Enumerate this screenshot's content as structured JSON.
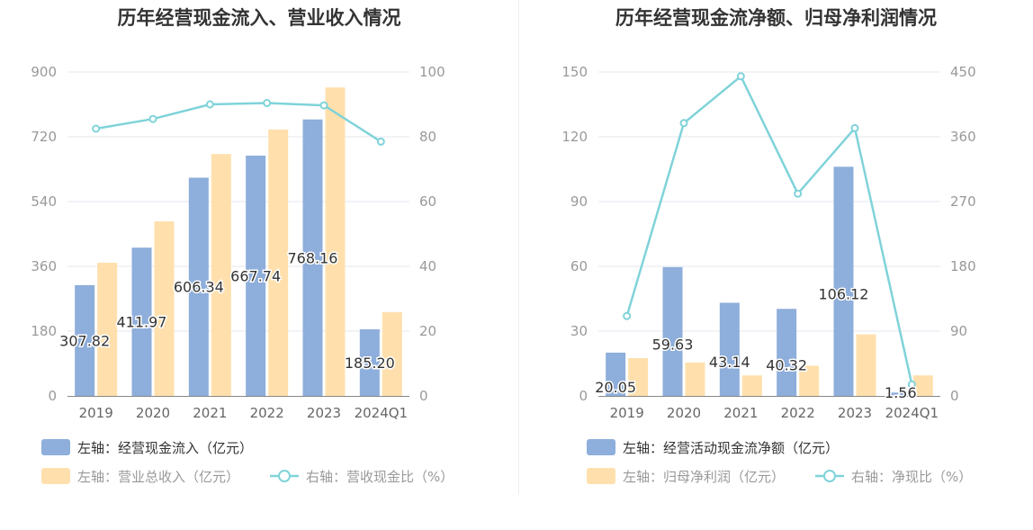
{
  "charts": [
    {
      "title": "历年经营现金流入、营业收入情况",
      "categories": [
        "2019",
        "2020",
        "2021",
        "2022",
        "2023",
        "2024Q1"
      ],
      "left_ticks": [
        "0",
        "180",
        "360",
        "540",
        "720",
        "900"
      ],
      "right_ticks": [
        "0",
        "20",
        "40",
        "60",
        "80",
        "100"
      ],
      "legend": [
        {
          "label": "左轴：经营现金流入（亿元）",
          "kind": "bar",
          "color": "#8eaedb",
          "text_color": "#333333"
        },
        {
          "label": "左轴：营业总收入（亿元）",
          "kind": "bar",
          "color": "#ffe0ad",
          "text_color": "#999999"
        },
        {
          "label": "右轴：营收现金比（%）",
          "kind": "line",
          "color": "#7fd3d9",
          "text_color": "#999999"
        }
      ]
    },
    {
      "title": "历年经营现金流净额、归母净利润情况",
      "categories": [
        "2019",
        "2020",
        "2021",
        "2022",
        "2023",
        "2024Q1"
      ],
      "left_ticks": [
        "0",
        "30",
        "60",
        "90",
        "120",
        "150"
      ],
      "right_ticks": [
        "0",
        "90",
        "180",
        "270",
        "360",
        "450"
      ],
      "legend": [
        {
          "label": "左轴：经营活动现金流净额（亿元）",
          "kind": "bar",
          "color": "#8eaedb",
          "text_color": "#333333"
        },
        {
          "label": "左轴：归母净利润（亿元）",
          "kind": "bar",
          "color": "#ffe0ad",
          "text_color": "#999999"
        },
        {
          "label": "右轴：净现比（%）",
          "kind": "line",
          "color": "#7fd3d9",
          "text_color": "#999999"
        }
      ]
    }
  ],
  "chart_data": [
    {
      "type": "bar",
      "title": "历年经营现金流入、营业收入情况",
      "categories": [
        "2019",
        "2020",
        "2021",
        "2022",
        "2023",
        "2024Q1"
      ],
      "ylim_left": [
        0,
        900
      ],
      "ylim_right": [
        0,
        100
      ],
      "grid": true,
      "legend_position": "bottom-left",
      "series": [
        {
          "name": "左轴：经营现金流入（亿元）",
          "axis": "left",
          "type": "bar",
          "color": "#8eaedb",
          "values": [
            307.82,
            411.97,
            606.34,
            667.74,
            768.16,
            185.2
          ],
          "labels": [
            "307.82",
            "411.97",
            "606.34",
            "667.74",
            "768.16",
            "185.20"
          ]
        },
        {
          "name": "左轴：营业总收入（亿元）",
          "axis": "left",
          "type": "bar",
          "color": "#ffe0ad",
          "values": [
            370,
            485,
            672,
            740,
            857,
            233
          ]
        },
        {
          "name": "右轴：营收现金比（%）",
          "axis": "right",
          "type": "line",
          "color": "#7fd3d9",
          "values": [
            82.5,
            85.5,
            90.0,
            90.4,
            89.7,
            78.5
          ]
        }
      ]
    },
    {
      "type": "bar",
      "title": "历年经营现金流净额、归母净利润情况",
      "categories": [
        "2019",
        "2020",
        "2021",
        "2022",
        "2023",
        "2024Q1"
      ],
      "ylim_left": [
        0,
        150
      ],
      "ylim_right": [
        0,
        450
      ],
      "grid": true,
      "legend_position": "bottom-left",
      "series": [
        {
          "name": "左轴：经营活动现金流净额（亿元）",
          "axis": "left",
          "type": "bar",
          "color": "#8eaedb",
          "values": [
            20.05,
            59.63,
            43.14,
            40.32,
            106.12,
            1.56
          ],
          "labels": [
            "20.05",
            "59.63",
            "43.14",
            "40.32",
            "106.12",
            "1.56"
          ]
        },
        {
          "name": "左轴：归母净利润（亿元）",
          "axis": "left",
          "type": "bar",
          "color": "#ffe0ad",
          "values": [
            17.5,
            15.5,
            9.5,
            14,
            28.5,
            9.5
          ]
        },
        {
          "name": "右轴：净现比（%）",
          "axis": "right",
          "type": "line",
          "color": "#7fd3d9",
          "values": [
            111,
            379,
            444,
            281,
            372,
            16
          ]
        }
      ]
    }
  ]
}
